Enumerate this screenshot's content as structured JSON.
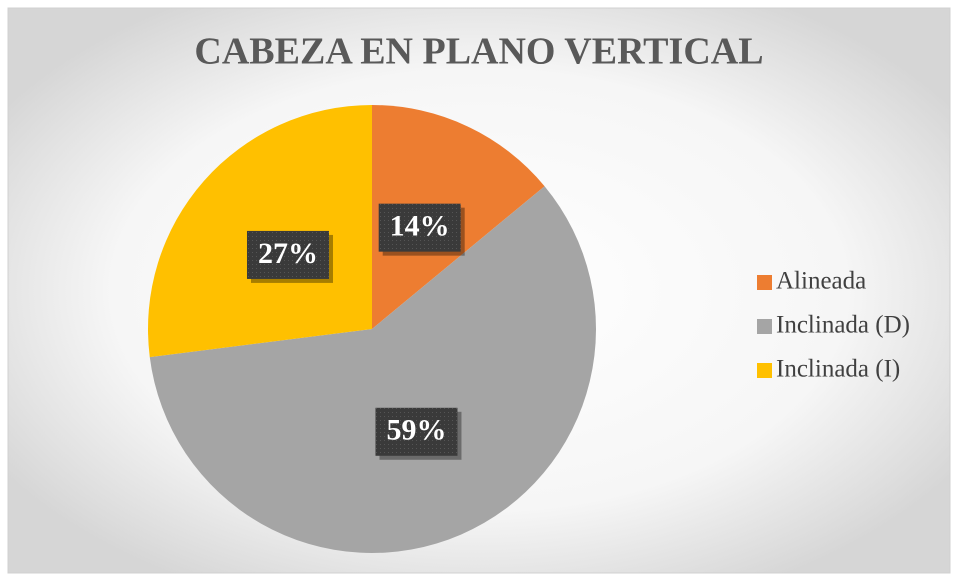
{
  "chart_data": {
    "type": "pie",
    "title": "CABEZA EN PLANO VERTICAL",
    "categories": [
      "Alineada",
      "Inclinada (D)",
      "Inclinada (I)"
    ],
    "values": [
      14,
      59,
      27
    ],
    "value_labels": [
      "14%",
      "59%",
      "27%"
    ],
    "colors": [
      "#ed7d31",
      "#a5a5a5",
      "#ffc000"
    ],
    "legend": "right"
  }
}
